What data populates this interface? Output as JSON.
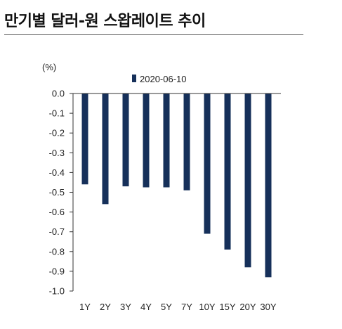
{
  "header": {
    "title": "만기별 달러-원 스왑레이트 추이"
  },
  "chart_data": {
    "type": "bar",
    "title": "만기별 달러-원 스왑레이트 추이",
    "unit_label": "(%)",
    "xlabel": "",
    "ylabel": "",
    "categories": [
      "1Y",
      "2Y",
      "3Y",
      "4Y",
      "5Y",
      "7Y",
      "10Y",
      "15Y",
      "20Y",
      "30Y"
    ],
    "series": [
      {
        "name": "2020-06-10",
        "color": "#16305a",
        "values": [
          -0.46,
          -0.56,
          -0.47,
          -0.475,
          -0.475,
          -0.49,
          -0.71,
          -0.79,
          -0.88,
          -0.93
        ]
      }
    ],
    "ylim": [
      -1.0,
      0.0
    ],
    "yticks": [
      "0.0",
      "-0.1",
      "-0.2",
      "-0.3",
      "-0.4",
      "-0.5",
      "-0.6",
      "-0.7",
      "-0.8",
      "-0.9",
      "-1.0"
    ],
    "grid": false,
    "legend_position": "top-center"
  }
}
